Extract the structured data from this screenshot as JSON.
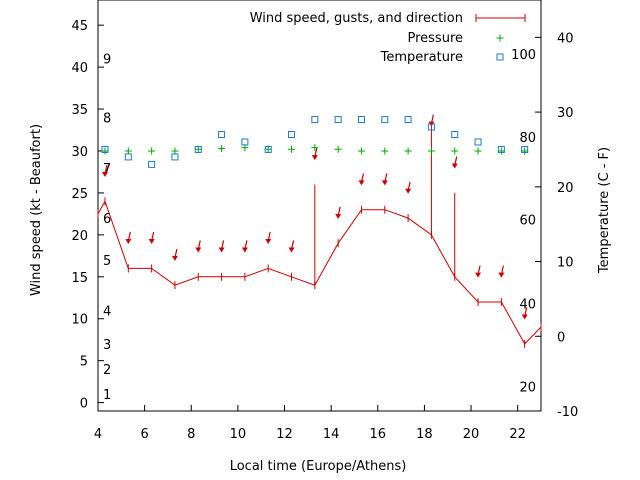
{
  "chart_data": {
    "type": "line",
    "xlabel": "Local time (Europe/Athens)",
    "ylabel": "Wind speed (kt - Beaufort)",
    "y2label": "Temperature (C - F)",
    "xlim": [
      4,
      23
    ],
    "ylim": [
      -1,
      48
    ],
    "y2lim": [
      -10,
      45
    ],
    "grid": false,
    "legend_position": "top-right",
    "x_ticks": [
      4,
      6,
      8,
      10,
      12,
      14,
      16,
      18,
      20,
      22
    ],
    "y_ticks": [
      0,
      5,
      10,
      15,
      20,
      25,
      30,
      35,
      40,
      45
    ],
    "y2_ticks": [
      -10,
      0,
      10,
      20,
      30,
      40
    ],
    "beaufort_labels": [
      {
        "label": "1",
        "y": 1
      },
      {
        "label": "2",
        "y": 4
      },
      {
        "label": "3",
        "y": 7
      },
      {
        "label": "4",
        "y": 11
      },
      {
        "label": "5",
        "y": 17
      },
      {
        "label": "6",
        "y": 22
      },
      {
        "label": "7",
        "y": 28
      },
      {
        "label": "8",
        "y": 34
      },
      {
        "label": "9",
        "y": 41
      }
    ],
    "fahrenheit_labels": [
      {
        "label": "20",
        "y2": -6.7
      },
      {
        "label": "40",
        "y2": 4.4
      },
      {
        "label": "60",
        "y2": 15.6
      },
      {
        "label": "80",
        "y2": 26.7
      },
      {
        "label": "100",
        "y2": 37.8
      }
    ],
    "series": [
      {
        "name": "Wind speed, gusts, and direction",
        "color": "#cc0000",
        "marker": "vertical tick",
        "x": [
          4,
          4.3,
          5.3,
          6.3,
          7.3,
          8.3,
          9.3,
          10.3,
          11.3,
          12.3,
          13.3,
          14.3,
          15.3,
          16.3,
          17.3,
          18.3,
          19.3,
          20.3,
          21.3,
          22.3,
          23
        ],
        "values": [
          22.5,
          24,
          16,
          16,
          14,
          15,
          15,
          15,
          16,
          15,
          14,
          19,
          23,
          23,
          22,
          20,
          15,
          12,
          12,
          7,
          9
        ],
        "gusts": [
          null,
          null,
          null,
          null,
          null,
          null,
          null,
          null,
          null,
          null,
          26,
          null,
          null,
          null,
          null,
          33,
          25,
          null,
          null,
          null,
          null
        ],
        "direction_arrows_y": [
          null,
          27.5,
          19.5,
          19.5,
          17.5,
          18.5,
          18.5,
          18.5,
          19.5,
          18.5,
          29.5,
          22.5,
          26.5,
          26.5,
          25.5,
          33.5,
          28.5,
          15.5,
          15.5,
          10.5,
          null
        ]
      },
      {
        "name": "Pressure",
        "color": "#00aa00",
        "marker": "+",
        "x": [
          4.3,
          5.3,
          6.3,
          7.3,
          8.3,
          9.3,
          10.3,
          11.3,
          12.3,
          13.3,
          14.3,
          15.3,
          16.3,
          17.3,
          18.3,
          19.3,
          20.3,
          21.3,
          22.3
        ],
        "values": [
          30,
          30,
          30,
          30,
          30.2,
          30.3,
          30.4,
          30.2,
          30.2,
          30.4,
          30.2,
          30,
          30,
          30,
          30,
          30,
          30,
          30,
          30
        ]
      },
      {
        "name": "Temperature",
        "color": "#1b7bc9",
        "marker": "square",
        "x": [
          4.3,
          5.3,
          6.3,
          7.3,
          8.3,
          9.3,
          10.3,
          11.3,
          12.3,
          13.3,
          14.3,
          15.3,
          16.3,
          17.3,
          18.3,
          19.3,
          20.3,
          21.3,
          22.3
        ],
        "values": [
          25,
          24,
          23,
          24,
          25,
          27,
          26,
          25,
          27,
          29,
          29,
          29,
          29,
          29,
          28,
          27,
          26,
          25,
          25
        ]
      }
    ]
  }
}
